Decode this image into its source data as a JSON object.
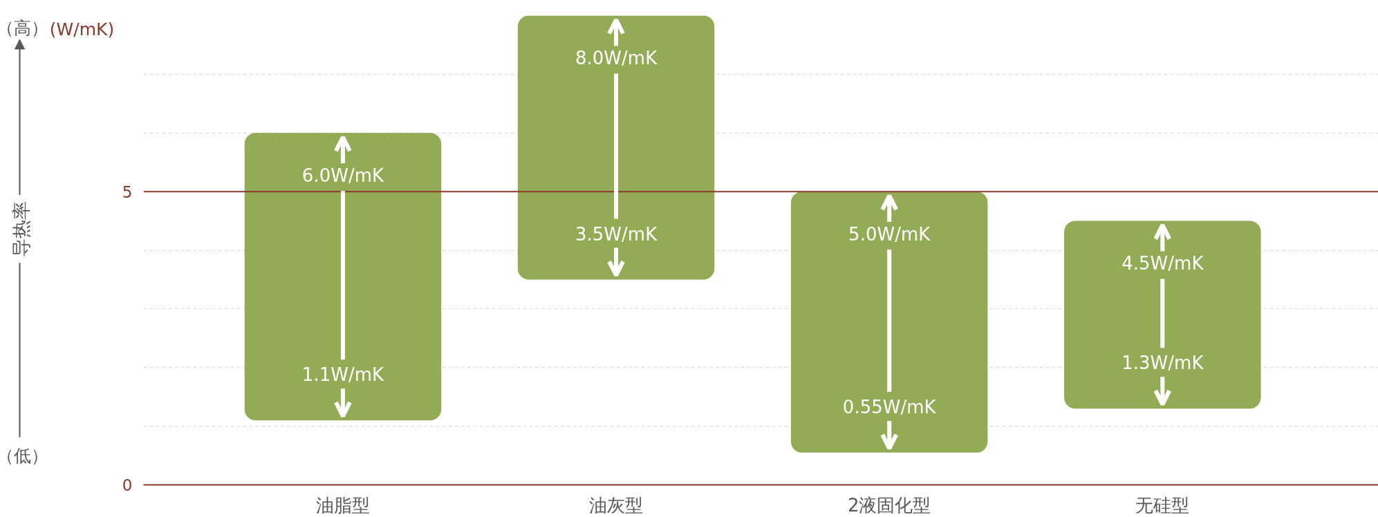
{
  "chart_data": {
    "type": "bar",
    "categories": [
      "油脂型",
      "油灰型",
      "2液固化型",
      "无硅型"
    ],
    "base": [
      1.1,
      3.5,
      0.55,
      1.3
    ],
    "values": [
      4.9,
      4.5,
      4.45,
      3.2
    ],
    "color": "#93ab54",
    "ylabel": "导热率",
    "ylim": [
      0,
      8
    ],
    "yticks": [
      0,
      {
        "value": 1,
        "label": null
      },
      {
        "value": 2,
        "label": null
      },
      {
        "value": 3,
        "label": null
      },
      {
        "value": 4,
        "label": null
      },
      5,
      {
        "value": 6,
        "label": null
      },
      {
        "value": 7,
        "label": null
      }
    ],
    "grid": "y",
    "ref_lines": [
      {
        "axis": "y",
        "value": 5,
        "color": "#8b3a2e"
      }
    ],
    "annotations": [
      "（高）",
      "（低）",
      "(W/mK)",
      {
        "text": "6.0W/mK",
        "x": "油脂型",
        "y": 6.0
      },
      {
        "text": "1.1W/mK",
        "x": "油脂型",
        "y": 1.1
      },
      {
        "text": "8.0W/mK",
        "x": "油灰型",
        "y": 8.0
      },
      {
        "text": "3.5W/mK",
        "x": "油灰型",
        "y": 3.5
      },
      {
        "text": "5.0W/mK",
        "x": "2液固化型",
        "y": 5.0
      },
      {
        "text": "0.55W/mK",
        "x": "2液固化型",
        "y": 0.55
      },
      {
        "text": "4.5W/mK",
        "x": "无硅型",
        "y": 4.5
      },
      {
        "text": "1.3W/mK",
        "x": "无硅型",
        "y": 1.3
      }
    ]
  }
}
